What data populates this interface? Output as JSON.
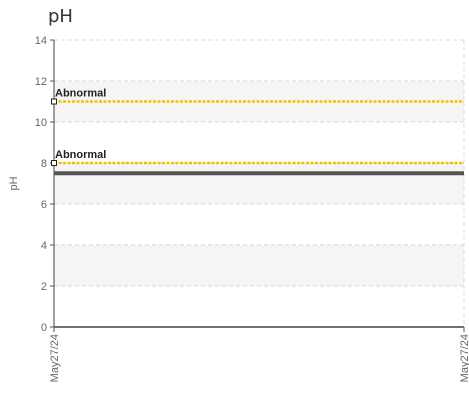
{
  "chart_data": {
    "type": "line",
    "title": "pH",
    "ylabel": "pH",
    "xlabel": "",
    "ylim": [
      0,
      14
    ],
    "yticks": [
      0,
      2,
      4,
      6,
      8,
      10,
      12,
      14
    ],
    "xticks": [
      "May27/24",
      "May27/24"
    ],
    "grid": true,
    "bands": [
      {
        "from": 10,
        "to": 12
      },
      {
        "from": 6,
        "to": 8
      },
      {
        "from": 2,
        "to": 4
      }
    ],
    "reference_lines": [
      {
        "label": "Abnormal",
        "y": 11,
        "color": "#f2c200"
      },
      {
        "label": "Abnormal",
        "y": 8,
        "color": "#f2c200"
      }
    ],
    "series": [
      {
        "values": [
          7.5,
          7.5
        ],
        "color": "#555555"
      }
    ]
  }
}
